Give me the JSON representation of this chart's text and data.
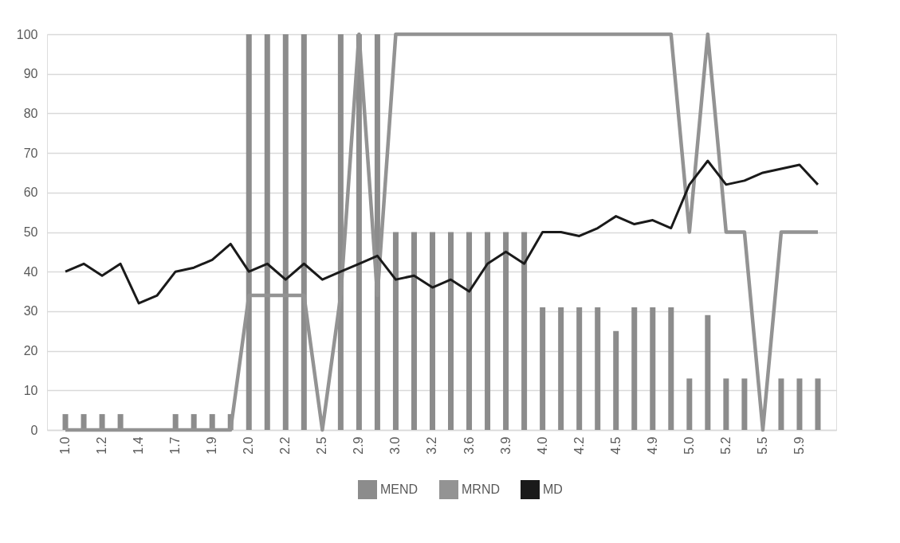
{
  "chart_data": {
    "type": "bar",
    "categories": [
      "1.0",
      null,
      "1.2",
      null,
      "1.4",
      null,
      "1.7",
      null,
      "1.9",
      null,
      "2.0",
      null,
      "2.2",
      null,
      "2.5",
      null,
      "2.9",
      null,
      "3.0",
      null,
      "3.2",
      null,
      "3.6",
      null,
      "3.9",
      null,
      "4.0",
      null,
      "4.2",
      null,
      "4.5",
      null,
      "4.9",
      null,
      "5.0",
      null,
      "5.2",
      null,
      "5.5",
      null,
      "5.9",
      null
    ],
    "series": [
      {
        "name": "MEND",
        "color": "#8c8c8c",
        "values": [
          4,
          4,
          4,
          4,
          0,
          0,
          4,
          4,
          4,
          4,
          100,
          100,
          100,
          100,
          0,
          100,
          100,
          100,
          50,
          50,
          50,
          50,
          50,
          50,
          50,
          50,
          31,
          31,
          31,
          31,
          25,
          31,
          31,
          31,
          13,
          29,
          13,
          13,
          0,
          13,
          13,
          13
        ]
      },
      {
        "name": "MRND",
        "type": "line",
        "color": "#939393",
        "values": [
          0,
          0,
          0,
          0,
          0,
          0,
          0,
          0,
          0,
          0,
          34,
          34,
          34,
          34,
          0,
          34,
          100,
          34,
          100,
          100,
          100,
          100,
          100,
          100,
          100,
          100,
          100,
          100,
          100,
          100,
          100,
          100,
          100,
          100,
          50,
          100,
          50,
          50,
          0,
          50,
          50,
          50
        ]
      },
      {
        "name": "MD",
        "type": "line",
        "color": "#1a1a1a",
        "values": [
          40,
          42,
          39,
          42,
          32,
          34,
          40,
          41,
          43,
          47,
          40,
          42,
          38,
          42,
          38,
          40,
          42,
          44,
          38,
          39,
          36,
          38,
          35,
          42,
          45,
          42,
          50,
          50,
          49,
          51,
          54,
          52,
          53,
          51,
          62,
          68,
          62,
          63,
          65,
          66,
          67,
          62
        ]
      }
    ],
    "ylim": [
      0,
      100
    ],
    "yticks": [
      0,
      10,
      20,
      30,
      40,
      50,
      60,
      70,
      80,
      90,
      100
    ],
    "grid": "y",
    "legend": "bottom",
    "marker": "none",
    "line_style": "solid"
  }
}
